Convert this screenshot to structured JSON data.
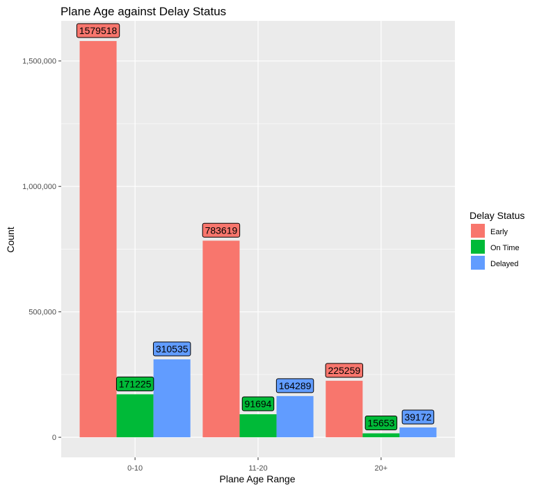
{
  "chart_data": {
    "type": "bar",
    "title": "Plane Age against Delay Status",
    "xlabel": "Plane Age Range",
    "ylabel": "Count",
    "categories": [
      "0-10",
      "11-20",
      "20+"
    ],
    "series": [
      {
        "name": "Early",
        "color": "#F8766D",
        "values": [
          1579518,
          783619,
          225259
        ]
      },
      {
        "name": "On Time",
        "color": "#00BA38",
        "values": [
          171225,
          91694,
          15653
        ]
      },
      {
        "name": "Delayed",
        "color": "#619CFF",
        "values": [
          310535,
          164289,
          39172
        ]
      }
    ],
    "ylim": [
      -80000,
      1660000
    ],
    "yticks": [
      0,
      500000,
      1000000,
      1500000
    ],
    "ytick_labels": [
      "0",
      "500,000",
      "1,000,000",
      "1,500,000"
    ],
    "legend": {
      "title": "Delay Status",
      "position": "right"
    },
    "grid": true,
    "panel_background": "#EBEBEB"
  }
}
